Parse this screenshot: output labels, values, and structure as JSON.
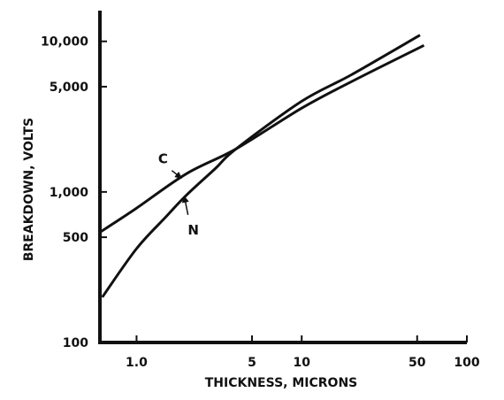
{
  "chart_data": {
    "type": "line",
    "xlabel": "THICKNESS, MICRONS",
    "ylabel": "BREAKDOWN, VOLTS",
    "x_scale": "log",
    "y_scale": "log",
    "xlim": [
      0.6,
      100
    ],
    "ylim": [
      100,
      16000
    ],
    "x_ticks": [
      {
        "value": 1,
        "label": "1.0"
      },
      {
        "value": 5,
        "label": "5"
      },
      {
        "value": 10,
        "label": "10"
      },
      {
        "value": 50,
        "label": "50"
      },
      {
        "value": 100,
        "label": "100"
      }
    ],
    "y_ticks": [
      {
        "value": 10000,
        "label": "10,000"
      },
      {
        "value": 5000,
        "label": "5,000"
      },
      {
        "value": 1000,
        "label": "1,000"
      },
      {
        "value": 500,
        "label": "500"
      },
      {
        "value": 100,
        "label": "100"
      }
    ],
    "grid": false,
    "series": [
      {
        "name": "C",
        "x": [
          0.6,
          1,
          2,
          4,
          10,
          20,
          55
        ],
        "y": [
          540,
          780,
          1320,
          1930,
          3600,
          5400,
          9400
        ]
      },
      {
        "name": "N",
        "x": [
          0.62,
          1,
          1.5,
          2,
          3,
          4,
          10,
          20,
          52
        ],
        "y": [
          200,
          420,
          680,
          950,
          1430,
          1930,
          4000,
          6000,
          11000
        ]
      }
    ],
    "annotations": [
      {
        "text": "C",
        "series": "C",
        "at_x": 1.85
      },
      {
        "text": "N",
        "series": "N",
        "at_x": 1.95
      }
    ]
  },
  "colors": {
    "line": "#111111",
    "background": "#ffffff"
  }
}
